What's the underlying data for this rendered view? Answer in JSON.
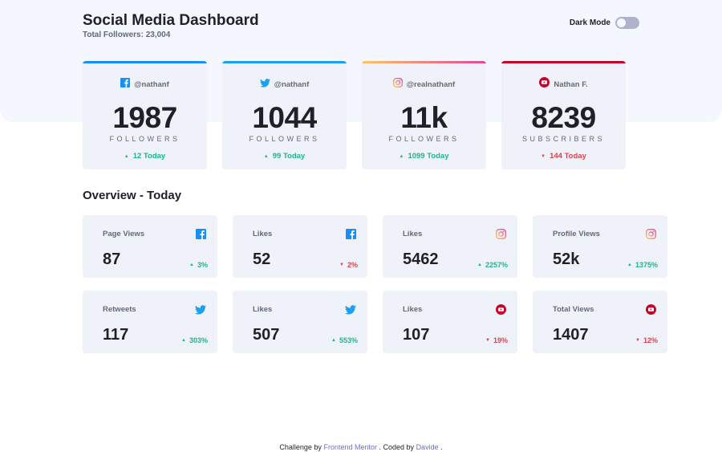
{
  "header": {
    "title": "Social Media Dashboard",
    "total_followers": "Total Followers: 23,004",
    "dark_mode_label": "Dark Mode"
  },
  "colors": {
    "facebook": "#198ff5",
    "twitter": "#1ca0f2",
    "instagram_start": "#fdc468",
    "instagram_end": "#df4996",
    "youtube": "#c4032a",
    "up": "#1eb589",
    "down": "#dc414c"
  },
  "followers": [
    {
      "platform": "facebook",
      "icon": "facebook-icon",
      "handle": "@nathanf",
      "count": "1987",
      "unit": "FOLLOWERS",
      "today": "12 Today",
      "trend": "up"
    },
    {
      "platform": "twitter",
      "icon": "twitter-icon",
      "handle": "@nathanf",
      "count": "1044",
      "unit": "FOLLOWERS",
      "today": "99 Today",
      "trend": "up"
    },
    {
      "platform": "instagram",
      "icon": "instagram-icon",
      "handle": "@realnathanf",
      "count": "11k",
      "unit": "FOLLOWERS",
      "today": "1099 Today",
      "trend": "up"
    },
    {
      "platform": "youtube",
      "icon": "youtube-icon",
      "handle": "Nathan F.",
      "count": "8239",
      "unit": "SUBSCRIBERS",
      "today": "144 Today",
      "trend": "down"
    }
  ],
  "overview": {
    "title": "Overview - Today",
    "cards": [
      {
        "metric": "Page Views",
        "platform": "facebook",
        "value": "87",
        "pct": "3%",
        "trend": "up"
      },
      {
        "metric": "Likes",
        "platform": "facebook",
        "value": "52",
        "pct": "2%",
        "trend": "down"
      },
      {
        "metric": "Likes",
        "platform": "instagram",
        "value": "5462",
        "pct": "2257%",
        "trend": "up"
      },
      {
        "metric": "Profile Views",
        "platform": "instagram",
        "value": "52k",
        "pct": "1375%",
        "trend": "up"
      },
      {
        "metric": "Retweets",
        "platform": "twitter",
        "value": "117",
        "pct": "303%",
        "trend": "up"
      },
      {
        "metric": "Likes",
        "platform": "twitter",
        "value": "507",
        "pct": "553%",
        "trend": "up"
      },
      {
        "metric": "Likes",
        "platform": "youtube",
        "value": "107",
        "pct": "19%",
        "trend": "down"
      },
      {
        "metric": "Total Views",
        "platform": "youtube",
        "value": "1407",
        "pct": "12%",
        "trend": "down"
      }
    ]
  },
  "footer": {
    "prefix": "Challenge by",
    "link1": "Frontend Mentor",
    "middle": ". Coded by",
    "link2": "Davide",
    "suffix": "."
  }
}
